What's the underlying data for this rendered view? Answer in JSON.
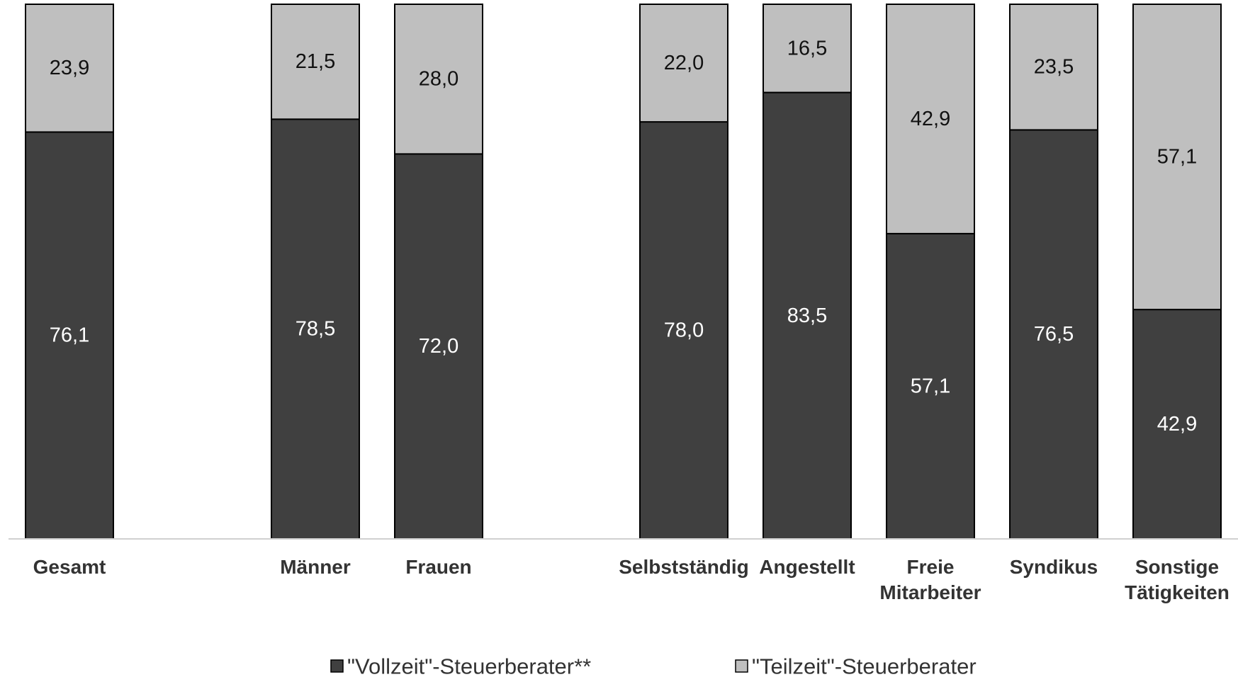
{
  "chart_data": {
    "type": "bar",
    "stacked": true,
    "unit": "percent",
    "ylim": [
      0,
      100
    ],
    "grid": false,
    "legend_position": "bottom",
    "categories": [
      [
        "Gesamt"
      ],
      [
        "Männer"
      ],
      [
        "Frauen"
      ],
      [
        "Selbstständig"
      ],
      [
        "Angestellt"
      ],
      [
        "Freie",
        "Mitarbeiter"
      ],
      [
        "Syndikus"
      ],
      [
        "Sonstige",
        "Tätigkeiten"
      ]
    ],
    "series": [
      {
        "name": "\"Vollzeit\"-Steuerberater**",
        "color": "#404040",
        "label_color": "#ffffff",
        "values": [
          76.1,
          78.5,
          72.0,
          78.0,
          83.5,
          57.1,
          76.5,
          42.9
        ],
        "labels": [
          "76,1",
          "78,5",
          "72,0",
          "78,0",
          "83,5",
          "57,1",
          "76,5",
          "42,9"
        ]
      },
      {
        "name": "\"Teilzeit\"-Steuerberater",
        "color": "#bfbfbf",
        "label_color": "#111111",
        "values": [
          23.9,
          21.5,
          28.0,
          22.0,
          16.5,
          42.9,
          23.5,
          57.1
        ],
        "labels": [
          "23,9",
          "21,5",
          "28,0",
          "22,0",
          "16,5",
          "42,9",
          "23,5",
          "57,1"
        ]
      }
    ]
  }
}
